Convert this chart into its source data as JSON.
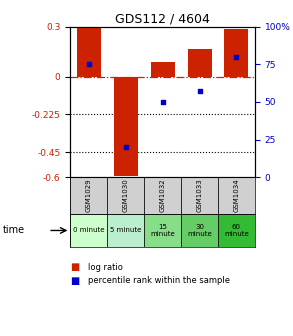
{
  "title": "GDS112 / 4604",
  "samples": [
    "GSM1029",
    "GSM1030",
    "GSM1032",
    "GSM1033",
    "GSM1034"
  ],
  "log_ratios": [
    0.3,
    -0.595,
    0.09,
    0.17,
    0.29
  ],
  "percentile_ranks": [
    75,
    20,
    50,
    57,
    80
  ],
  "time_labels": [
    "0 minute",
    "5 minute",
    "15\nminute",
    "30\nminute",
    "60\nminute"
  ],
  "time_colors": [
    "#ccffcc",
    "#bbeecc",
    "#88dd88",
    "#66cc66",
    "#33bb33"
  ],
  "ylim_left": [
    -0.6,
    0.3
  ],
  "ylim_right": [
    0,
    100
  ],
  "yticks_left": [
    0.3,
    0,
    -0.225,
    -0.45,
    -0.6
  ],
  "ytick_labels_left": [
    "0.3",
    "0",
    "-0.225",
    "-0.45",
    "-0.6"
  ],
  "yticks_right": [
    100,
    75,
    50,
    25,
    0
  ],
  "ytick_labels_right": [
    "100%",
    "75",
    "50",
    "25",
    "0"
  ],
  "bar_color": "#cc2200",
  "dot_color": "#0000cc",
  "hline_y": 0,
  "dotted_lines": [
    -0.225,
    -0.45
  ],
  "row_label": "time",
  "legend_log_ratio": "log ratio",
  "legend_percentile": "percentile rank within the sample"
}
